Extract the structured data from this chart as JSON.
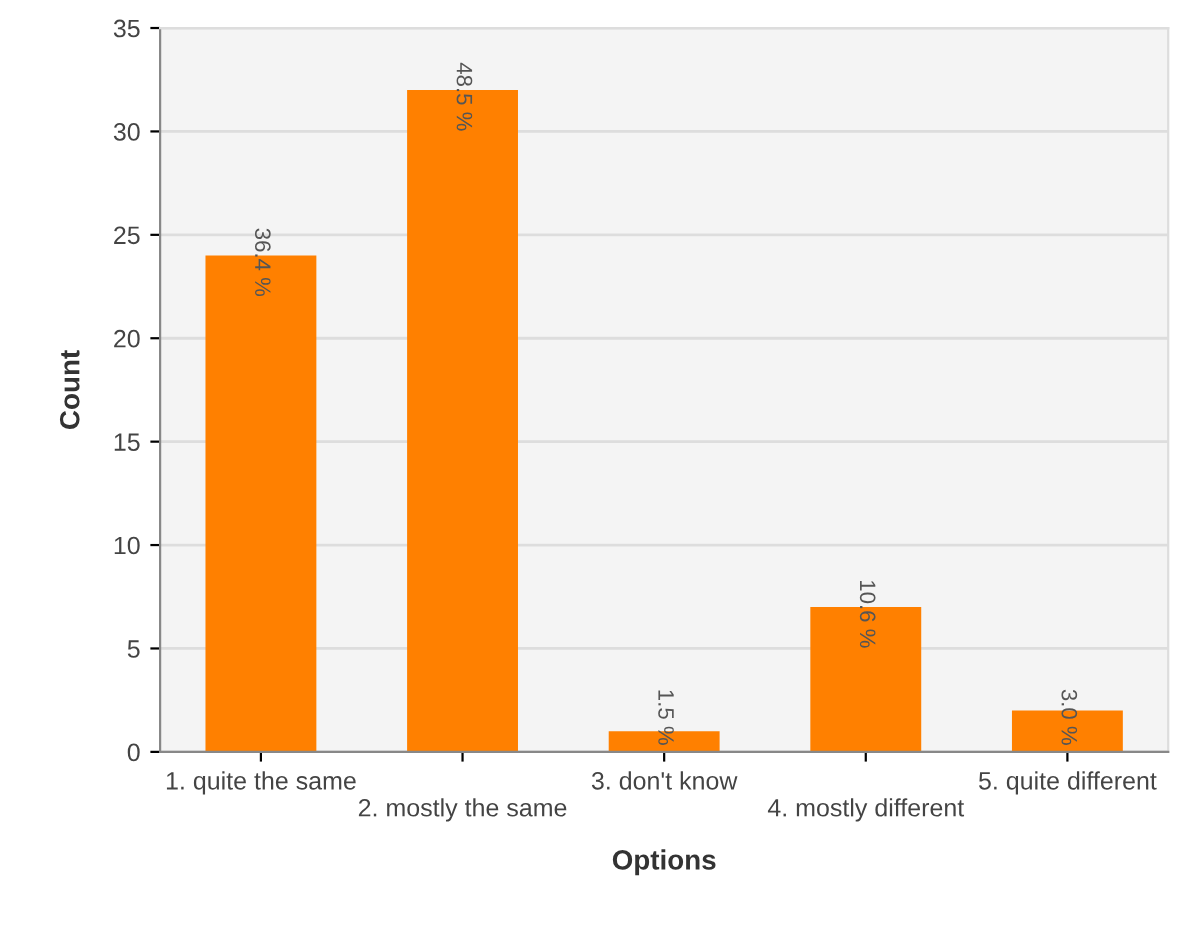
{
  "chart_data": {
    "type": "bar",
    "xlabel": "Options",
    "ylabel": "Count",
    "categories": [
      "1. quite the same",
      "2. mostly the same",
      "3. don't know",
      "4. mostly different",
      "5. quite different"
    ],
    "values": [
      24,
      32,
      1,
      7,
      2
    ],
    "color": "#ff8000",
    "annotations": [
      {
        "text": "36.4 %",
        "x": "1. quite the same",
        "y": 24
      },
      {
        "text": "48.5 %",
        "x": "2. mostly the same",
        "y": 32
      },
      {
        "text": "1.5 %",
        "x": "3. don't know",
        "y": 1
      },
      {
        "text": "10.6 %",
        "x": "4. mostly different",
        "y": 7
      },
      {
        "text": "3.0 %",
        "x": "5. quite different",
        "y": 2
      }
    ],
    "ylim": [
      0,
      35
    ],
    "yticks": [
      0,
      5,
      10,
      15,
      20,
      25,
      30,
      35
    ],
    "grid": "y",
    "legend": false
  }
}
